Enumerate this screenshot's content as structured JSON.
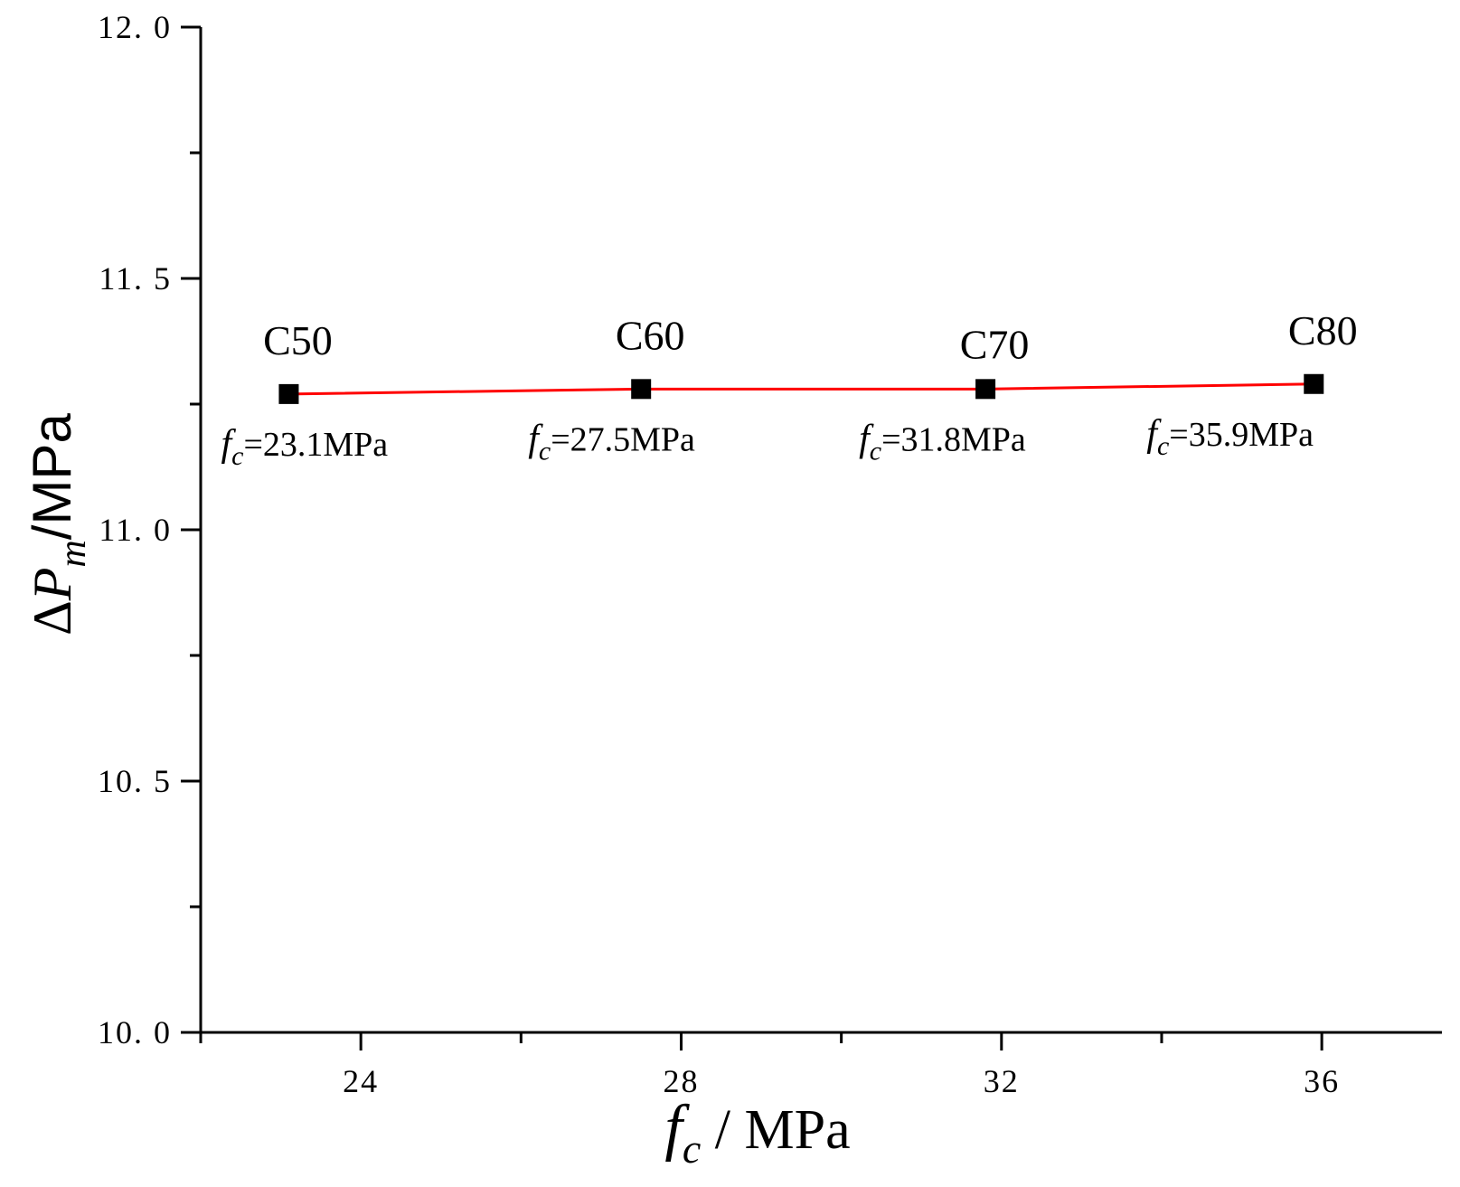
{
  "chart_data": {
    "type": "line",
    "xlabel": {
      "symbol": "f",
      "sub": "c",
      "unit": " / MPa"
    },
    "ylabel": {
      "prefix": "Δ",
      "symbol": "P",
      "sub": "m",
      "unit": "/MPa"
    },
    "xlim": [
      22,
      37.5
    ],
    "ylim": [
      10.0,
      12.0
    ],
    "x_ticks": [
      24,
      28,
      32,
      36
    ],
    "x_minor_ticks": [
      22,
      26,
      30,
      34
    ],
    "y_ticks": [
      10.0,
      10.5,
      11.0,
      11.5,
      12.0
    ],
    "y_tick_labels": [
      "10. 0",
      "10. 5",
      "11. 0",
      "11. 5",
      "12. 0"
    ],
    "y_minor_ticks": [
      10.25,
      10.75,
      11.25,
      11.75
    ],
    "grid": false,
    "series": [
      {
        "line_color": "#ff0000",
        "marker_color": "#000000",
        "marker": "square",
        "points": [
          {
            "x": 23.1,
            "y": 11.27,
            "label": "C50",
            "value_prefix": "f",
            "value_sub": "c",
            "value_text": "=23.1MPa"
          },
          {
            "x": 27.5,
            "y": 11.28,
            "label": "C60",
            "value_prefix": "f",
            "value_sub": "c",
            "value_text": "=27.5MPa"
          },
          {
            "x": 31.8,
            "y": 11.28,
            "label": "C70",
            "value_prefix": "f",
            "value_sub": "c",
            "value_text": "=31.8MPa"
          },
          {
            "x": 35.9,
            "y": 11.29,
            "label": "C80",
            "value_prefix": "f",
            "value_sub": "c",
            "value_text": "=35.9MPa"
          }
        ]
      }
    ]
  }
}
